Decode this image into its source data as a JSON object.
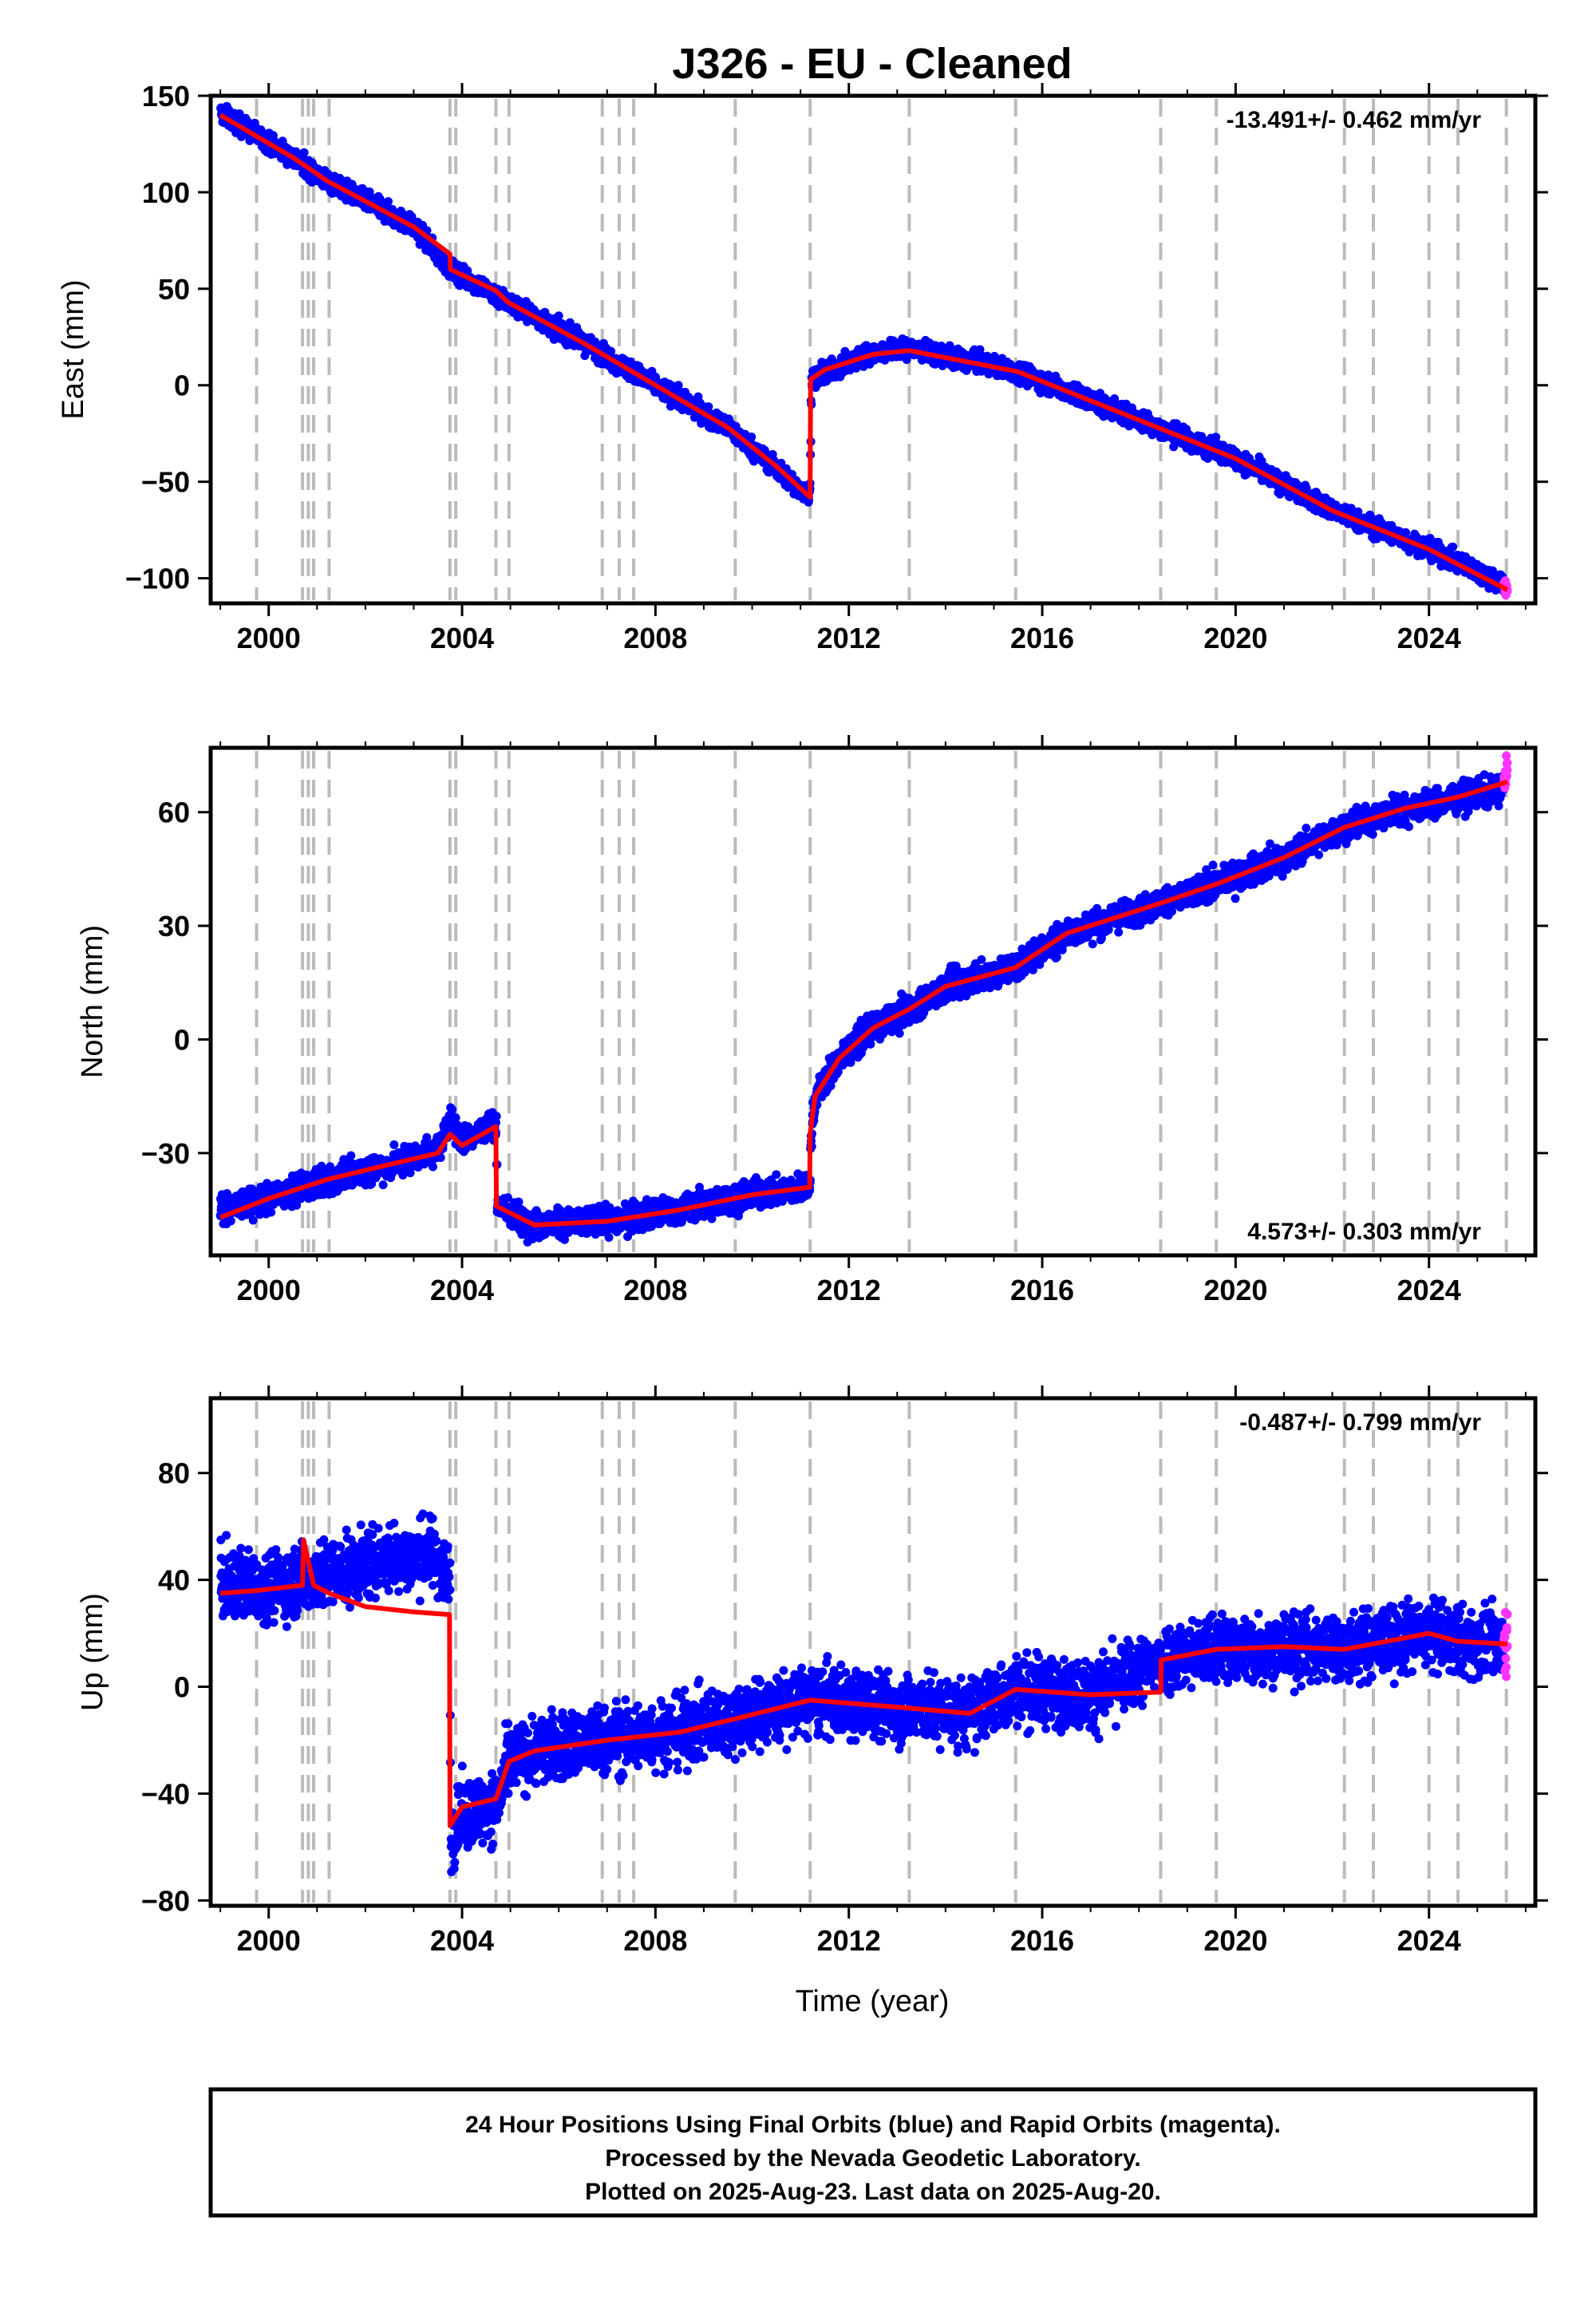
{
  "title": "J326  - EU - Cleaned",
  "xlabel": "Time (year)",
  "footer": [
    "24 Hour Positions Using Final Orbits (blue) and Rapid Orbits (magenta).",
    "Processed by the Nevada Geodetic Laboratory.",
    "Plotted on 2025-Aug-23. Last data on 2025-Aug-20."
  ],
  "colors": {
    "final": "#0000ff",
    "rapid": "#ff33ff",
    "model": "#ff0000",
    "event_line": "#bbbbbb"
  },
  "chart_data": [
    {
      "type": "scatter",
      "ylabel": "East (mm)",
      "rate_label": "-13.491+/- 0.462 mm/yr",
      "rate_position": "top-right",
      "xlim": [
        1998.8,
        2026.2
      ],
      "ylim": [
        -113,
        150
      ],
      "xticks": [
        2000,
        2004,
        2008,
        2012,
        2016,
        2020,
        2024
      ],
      "yticks": [
        -100,
        -50,
        0,
        50,
        100,
        150
      ],
      "ytick_labels": [
        "−100",
        "−50",
        "0",
        "50",
        "100",
        "150"
      ],
      "event_lines": [
        1999.75,
        2000.7,
        2000.82,
        2000.93,
        2001.25,
        2003.75,
        2003.87,
        2004.7,
        2004.97,
        2006.9,
        2007.25,
        2007.55,
        2009.65,
        2011.2,
        2013.25,
        2015.45,
        2018.45,
        2019.6,
        2022.25,
        2022.85,
        2024.0,
        2024.6,
        2025.6
      ],
      "model": {
        "x": [
          1999.0,
          2000.5,
          2000.8,
          2001.2,
          2003.0,
          2003.75,
          2003.76,
          2004.7,
          2004.95,
          2006.5,
          2008.0,
          2009.5,
          2010.5,
          2011.2,
          2011.21,
          2011.5,
          2012.5,
          2013.25,
          2015.5,
          2018.5,
          2020.0,
          2022.0,
          2024.0,
          2025.62
        ],
        "y": [
          140,
          118,
          113,
          106,
          82,
          68,
          60,
          49,
          43,
          22,
          0,
          -22,
          -42,
          -58,
          3,
          8,
          16,
          18,
          7,
          -23,
          -38,
          -65,
          -85,
          -106
        ]
      },
      "final": {
        "x": [
          1999.0,
          2000.5,
          2001.2,
          2003.0,
          2003.76,
          2004.95,
          2006.5,
          2008.0,
          2009.5,
          2011.19,
          2011.22,
          2012.5,
          2013.25,
          2015.5,
          2018.5,
          2020.0,
          2022.0,
          2024.0,
          2025.55
        ],
        "y": [
          141,
          118,
          106,
          82,
          60,
          43,
          22,
          0,
          -22,
          -58,
          3,
          17,
          19,
          7,
          -23,
          -38,
          -65,
          -85,
          -103
        ],
        "scatter": 3.5
      },
      "rapid": {
        "x": [
          2025.55,
          2025.62
        ],
        "y": [
          -103,
          -106
        ],
        "scatter": 3
      }
    },
    {
      "type": "scatter",
      "ylabel": "North (mm)",
      "rate_label": "4.573+/- 0.303 mm/yr",
      "rate_position": "bottom-right",
      "xlim": [
        1998.8,
        2026.2
      ],
      "ylim": [
        -57,
        77
      ],
      "xticks": [
        2000,
        2004,
        2008,
        2012,
        2016,
        2020,
        2024
      ],
      "yticks": [
        -30,
        0,
        30,
        60
      ],
      "ytick_labels": [
        "−30",
        "0",
        "30",
        "60"
      ],
      "event_lines": [
        1999.75,
        2000.7,
        2000.82,
        2000.93,
        2001.25,
        2003.75,
        2003.87,
        2004.7,
        2004.97,
        2006.9,
        2007.25,
        2007.55,
        2009.65,
        2011.2,
        2013.25,
        2015.45,
        2018.45,
        2019.6,
        2022.25,
        2022.85,
        2024.0,
        2024.6,
        2025.6
      ],
      "model": {
        "x": [
          1999.0,
          2000.0,
          2001.2,
          2002.5,
          2003.5,
          2003.75,
          2004.0,
          2004.7,
          2004.71,
          2005.5,
          2007.0,
          2008.5,
          2010.0,
          2011.19,
          2011.2,
          2011.3,
          2011.8,
          2012.5,
          2013.25,
          2014.0,
          2015.45,
          2016.5,
          2018.45,
          2019.6,
          2021.0,
          2022.25,
          2023.5,
          2024.6,
          2025.62
        ],
        "y": [
          -47,
          -42,
          -37,
          -33,
          -30,
          -25,
          -28,
          -23,
          -44,
          -49,
          -48,
          -45,
          -41,
          -39,
          -25,
          -15,
          -5,
          3,
          8,
          14,
          19,
          28,
          36,
          41,
          48,
          56,
          61,
          64,
          68
        ]
      },
      "final": {
        "x": [
          1999.0,
          2000.0,
          2001.2,
          2002.5,
          2003.5,
          2003.75,
          2004.0,
          2004.7,
          2004.72,
          2005.5,
          2007.0,
          2008.5,
          2010.0,
          2011.19,
          2011.21,
          2011.3,
          2011.8,
          2012.5,
          2013.25,
          2014.0,
          2015.45,
          2016.5,
          2018.45,
          2019.6,
          2021.0,
          2022.25,
          2023.5,
          2024.6,
          2025.55
        ],
        "y": [
          -45,
          -42,
          -37,
          -33,
          -29,
          -21,
          -27,
          -22,
          -44,
          -49,
          -48,
          -45,
          -41,
          -39,
          -26,
          -15,
          -5,
          3,
          8,
          14,
          19,
          28,
          36,
          41,
          48,
          56,
          61,
          64,
          66
        ],
        "scatter": 2.6
      },
      "rapid": {
        "x": [
          2025.55,
          2025.62
        ],
        "y": [
          68,
          72
        ],
        "scatter": 2.5
      }
    },
    {
      "type": "scatter",
      "ylabel": "Up (mm)",
      "rate_label": "-0.487+/- 0.799 mm/yr",
      "rate_position": "top-right",
      "xlim": [
        1998.8,
        2026.2
      ],
      "ylim": [
        -82,
        108
      ],
      "xticks": [
        2000,
        2004,
        2008,
        2012,
        2016,
        2020,
        2024
      ],
      "yticks": [
        -80,
        -40,
        0,
        40,
        80
      ],
      "ytick_labels": [
        "−80",
        "−40",
        "0",
        "40",
        "80"
      ],
      "event_lines": [
        1999.75,
        2000.7,
        2000.82,
        2000.93,
        2001.25,
        2003.75,
        2003.87,
        2004.7,
        2004.97,
        2006.9,
        2007.25,
        2007.55,
        2009.65,
        2011.2,
        2013.25,
        2015.45,
        2018.45,
        2019.6,
        2022.25,
        2022.85,
        2024.0,
        2024.6,
        2025.6
      ],
      "model": {
        "x": [
          1999.0,
          1999.75,
          2000.7,
          2000.72,
          2000.93,
          2001.25,
          2002.0,
          2003.0,
          2003.74,
          2003.75,
          2004.0,
          2004.7,
          2004.97,
          2005.5,
          2007.0,
          2008.5,
          2009.65,
          2011.2,
          2013.25,
          2014.5,
          2015.45,
          2017.0,
          2018.45,
          2018.46,
          2019.6,
          2021.0,
          2022.25,
          2024.0,
          2024.6,
          2025.62
        ],
        "y": [
          35,
          36,
          38,
          55,
          38,
          35,
          30,
          28,
          27,
          -52,
          -45,
          -42,
          -28,
          -24,
          -20,
          -17,
          -12,
          -5,
          -8,
          -10,
          -1,
          -3,
          -2,
          10,
          14,
          15,
          14,
          20,
          17,
          16
        ]
      },
      "final": {
        "x": [
          1999.0,
          2000.0,
          2001.25,
          2002.5,
          2003.4,
          2003.74,
          2003.76,
          2004.0,
          2004.7,
          2004.97,
          2005.5,
          2007.0,
          2008.5,
          2009.65,
          2011.2,
          2013.25,
          2014.5,
          2015.45,
          2017.0,
          2018.46,
          2019.6,
          2021.0,
          2022.25,
          2024.0,
          2024.6,
          2025.55
        ],
        "y": [
          38,
          38,
          42,
          48,
          50,
          40,
          -56,
          -48,
          -45,
          -28,
          -24,
          -20,
          -17,
          -12,
          -5,
          -8,
          -10,
          -1,
          -3,
          10,
          14,
          15,
          14,
          20,
          17,
          16
        ],
        "scatter": 9
      },
      "rapid": {
        "x": [
          2025.55,
          2025.62
        ],
        "y": [
          16,
          16
        ],
        "scatter": 10
      }
    }
  ]
}
